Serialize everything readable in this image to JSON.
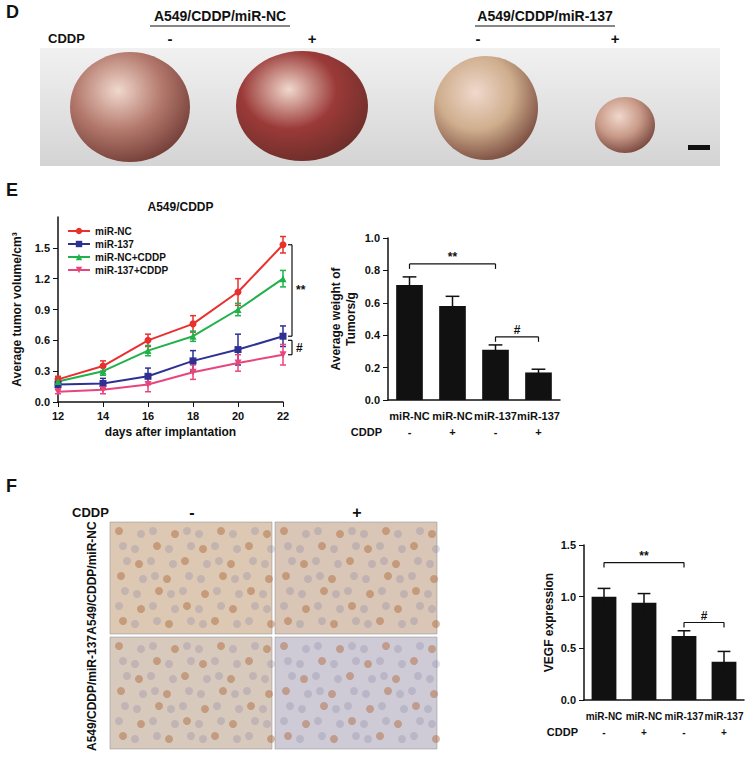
{
  "panels": {
    "D": {
      "label": "D",
      "groups": [
        "A549/CDDP/miR-NC",
        "A549/CDDP/miR-137"
      ],
      "treatment": {
        "label": "CDDP",
        "values": [
          "-",
          "+",
          "-",
          "+"
        ]
      }
    },
    "E": {
      "label": "E"
    },
    "F": {
      "label": "F",
      "treatment": {
        "label": "CDDP",
        "values": [
          "-",
          "+"
        ]
      },
      "rows": [
        "A549/CDDP/miR-NC",
        "A549/CDDP/miR-137"
      ]
    }
  },
  "chart_data": [
    {
      "type": "line",
      "title": "A549/CDDP",
      "xlabel": "days after implantation",
      "ylabel": "Average tumor volume/cm³",
      "x": [
        12,
        14,
        16,
        18,
        20,
        22
      ],
      "xlim": [
        12,
        22
      ],
      "xticks": [
        12,
        14,
        16,
        18,
        20,
        22
      ],
      "ylim": [
        0,
        1.8
      ],
      "yticks": [
        {
          "value": 0,
          "label": "0.0"
        },
        {
          "value": 0.3,
          "label": "0.3"
        },
        {
          "value": 0.6,
          "label": "0.6"
        },
        {
          "value": 0.9,
          "label": "0.9"
        },
        {
          "value": 1.2,
          "label": "1.2"
        },
        {
          "value": 1.5,
          "label": "1.5"
        }
      ],
      "grid": false,
      "legend": "upper left",
      "series": [
        {
          "name": "miR-NC",
          "color": "#e8312f",
          "marker": "circle",
          "values": [
            0.22,
            0.35,
            0.6,
            0.76,
            1.07,
            1.53
          ],
          "errors": [
            0.03,
            0.05,
            0.06,
            0.08,
            0.13,
            0.08
          ]
        },
        {
          "name": "miR-137",
          "color": "#2e3192",
          "marker": "square",
          "values": [
            0.17,
            0.18,
            0.25,
            0.4,
            0.51,
            0.64
          ],
          "errors": [
            0.03,
            0.05,
            0.08,
            0.1,
            0.15,
            0.1
          ]
        },
        {
          "name": "miR-NC+CDDP",
          "color": "#21b14b",
          "marker": "triangle",
          "values": [
            0.2,
            0.3,
            0.5,
            0.64,
            0.9,
            1.2
          ],
          "errors": [
            0.02,
            0.04,
            0.05,
            0.05,
            0.06,
            0.08
          ]
        },
        {
          "name": "miR-137+CDDP",
          "color": "#e8457c",
          "marker": "triangle-down",
          "values": [
            0.1,
            0.12,
            0.17,
            0.29,
            0.38,
            0.46
          ],
          "errors": [
            0.02,
            0.04,
            0.07,
            0.07,
            0.08,
            0.1
          ]
        }
      ],
      "annotations": [
        {
          "text": "**",
          "y": [
            1.53,
            0.64
          ]
        },
        {
          "text": "#",
          "y": [
            0.6,
            0.46
          ]
        }
      ]
    },
    {
      "type": "bar",
      "ylabel": "Average weight of\nTumors/g",
      "categories": [
        "miR-NC",
        "miR-NC",
        "miR-137",
        "miR-137"
      ],
      "treatment": {
        "label": "CDDP",
        "values": [
          "-",
          "+",
          "-",
          "+"
        ]
      },
      "values": [
        0.71,
        0.58,
        0.31,
        0.17
      ],
      "errors": [
        0.05,
        0.06,
        0.03,
        0.02
      ],
      "color": "#111111",
      "ylim": [
        0,
        1.0
      ],
      "yticks": [
        {
          "value": 0,
          "label": "0.0"
        },
        {
          "value": 0.2,
          "label": "0.2"
        },
        {
          "value": 0.4,
          "label": "0.4"
        },
        {
          "value": 0.6,
          "label": "0.6"
        },
        {
          "value": 0.8,
          "label": "0.8"
        },
        {
          "value": 1.0,
          "label": "1.0"
        }
      ],
      "grid": false,
      "annotations": [
        {
          "text": "**",
          "between": [
            0,
            2
          ],
          "y": 0.84
        },
        {
          "text": "#",
          "between": [
            2,
            3
          ],
          "y": 0.39
        }
      ]
    },
    {
      "type": "bar",
      "ylabel": "VEGF expression",
      "categories": [
        "miR-NC",
        "miR-NC",
        "miR-137",
        "miR-137"
      ],
      "treatment": {
        "label": "CDDP",
        "values": [
          "-",
          "+",
          "-",
          "+"
        ]
      },
      "values": [
        1.0,
        0.94,
        0.62,
        0.37
      ],
      "errors": [
        0.08,
        0.09,
        0.05,
        0.1
      ],
      "color": "#111111",
      "ylim": [
        0,
        1.5
      ],
      "yticks": [
        {
          "value": 0,
          "label": "0.0"
        },
        {
          "value": 0.5,
          "label": "0.5"
        },
        {
          "value": 1.0,
          "label": "1.0"
        },
        {
          "value": 1.5,
          "label": "1.5"
        }
      ],
      "grid": false,
      "annotations": [
        {
          "text": "**",
          "between": [
            0,
            2
          ],
          "y": 1.33
        },
        {
          "text": "#",
          "between": [
            2,
            3
          ],
          "y": 0.75
        }
      ]
    }
  ]
}
